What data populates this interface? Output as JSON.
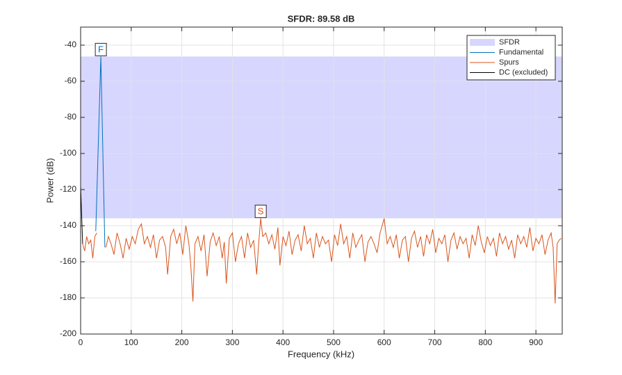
{
  "chart_data": {
    "type": "line",
    "title": "SFDR:  89.58 dB",
    "x_label": "Frequency (kHz)",
    "y_label": "Power (dB)",
    "xlim": [
      0,
      952
    ],
    "ylim": [
      -200,
      -30
    ],
    "xticks": [
      0,
      100,
      200,
      300,
      400,
      500,
      600,
      700,
      800,
      900
    ],
    "yticks": [
      -200,
      -180,
      -160,
      -140,
      -120,
      -100,
      -80,
      -60,
      -40
    ],
    "grid": true,
    "legend": "top-right",
    "series": [
      {
        "name": "SFDR",
        "color": "#d6d6ff",
        "style": "band",
        "values": [
          -135.9,
          -46.3
        ]
      },
      {
        "name": "Fundamental",
        "color": "#0072bd",
        "x": [
          30,
          40,
          48
        ],
        "values": [
          -143,
          -46.3,
          -152
        ]
      },
      {
        "name": "Spurs",
        "color": "#d95319",
        "x": [
          4,
          8,
          12,
          16,
          20,
          24,
          28,
          32,
          40,
          50,
          55,
          60,
          66,
          72,
          78,
          84,
          90,
          96,
          102,
          108,
          114,
          120,
          126,
          132,
          138,
          144,
          150,
          156,
          162,
          168,
          172,
          178,
          184,
          190,
          196,
          202,
          208,
          214,
          218,
          222,
          226,
          232,
          238,
          244,
          250,
          256,
          262,
          268,
          274,
          280,
          284,
          288,
          294,
          300,
          306,
          312,
          318,
          324,
          330,
          336,
          342,
          348,
          352,
          356,
          360,
          366,
          372,
          378,
          384,
          390,
          394,
          400,
          406,
          412,
          418,
          424,
          430,
          436,
          442,
          448,
          454,
          460,
          466,
          472,
          478,
          484,
          490,
          496,
          502,
          508,
          514,
          520,
          526,
          532,
          538,
          544,
          550,
          556,
          562,
          568,
          574,
          580,
          586,
          592,
          600,
          606,
          612,
          618,
          624,
          630,
          636,
          642,
          648,
          654,
          660,
          666,
          672,
          678,
          684,
          690,
          696,
          702,
          708,
          714,
          720,
          726,
          732,
          738,
          744,
          750,
          756,
          762,
          768,
          774,
          780,
          786,
          792,
          798,
          804,
          810,
          816,
          822,
          828,
          834,
          840,
          846,
          852,
          858,
          864,
          870,
          876,
          882,
          888,
          894,
          900,
          906,
          912,
          918,
          924,
          930,
          934,
          938,
          942,
          946,
          950
        ],
        "values": [
          -150,
          -154,
          -146,
          -150,
          -148,
          -158,
          -146,
          -144,
          null,
          -152,
          -146,
          -150,
          -156,
          -144,
          -150,
          -158,
          -147,
          -153,
          -146,
          -150,
          -142,
          -139,
          -150,
          -146,
          -152,
          -145,
          -158,
          -148,
          -146,
          -152,
          -167,
          -146,
          -142,
          -150,
          -144,
          -156,
          -140,
          -150,
          -163,
          -182,
          -150,
          -146,
          -154,
          -145,
          -168,
          -149,
          -144,
          -151,
          -146,
          -158,
          -149,
          -172,
          -147,
          -144,
          -160,
          -150,
          -146,
          -158,
          -144,
          -152,
          -148,
          -167,
          -150,
          -135.9,
          -146,
          -144,
          -150,
          -145,
          -153,
          -141,
          -162,
          -146,
          -151,
          -143,
          -156,
          -148,
          -145,
          -154,
          -140,
          -150,
          -147,
          -158,
          -144,
          -152,
          -146,
          -150,
          -148,
          -160,
          -145,
          -151,
          -139,
          -150,
          -146,
          -158,
          -144,
          -152,
          -148,
          -145,
          -160,
          -149,
          -146,
          -150,
          -155,
          -144,
          -136,
          -150,
          -146,
          -152,
          -145,
          -158,
          -148,
          -146,
          -160,
          -147,
          -143,
          -152,
          -146,
          -157,
          -145,
          -150,
          -142,
          -155,
          -147,
          -150,
          -145,
          -160,
          -148,
          -144,
          -153,
          -146,
          -150,
          -147,
          -158,
          -145,
          -151,
          -140,
          -149,
          -155,
          -146,
          -151,
          -147,
          -157,
          -144,
          -150,
          -146,
          -153,
          -148,
          -158,
          -145,
          -150,
          -146,
          -152,
          -141,
          -154,
          -147,
          -150,
          -145,
          -156,
          -148,
          -144,
          -152,
          -183,
          -150,
          -148,
          -147
        ]
      },
      {
        "name": "DC (excluded)",
        "color": "#000000",
        "x": [
          0,
          4
        ],
        "values": [
          -118,
          -150
        ]
      }
    ],
    "annotations": [
      {
        "label": "F",
        "x": 40,
        "y": -46.3,
        "color": "#0072bd"
      },
      {
        "label": "S",
        "x": 356,
        "y": -135.9,
        "color": "#d95319"
      }
    ]
  }
}
